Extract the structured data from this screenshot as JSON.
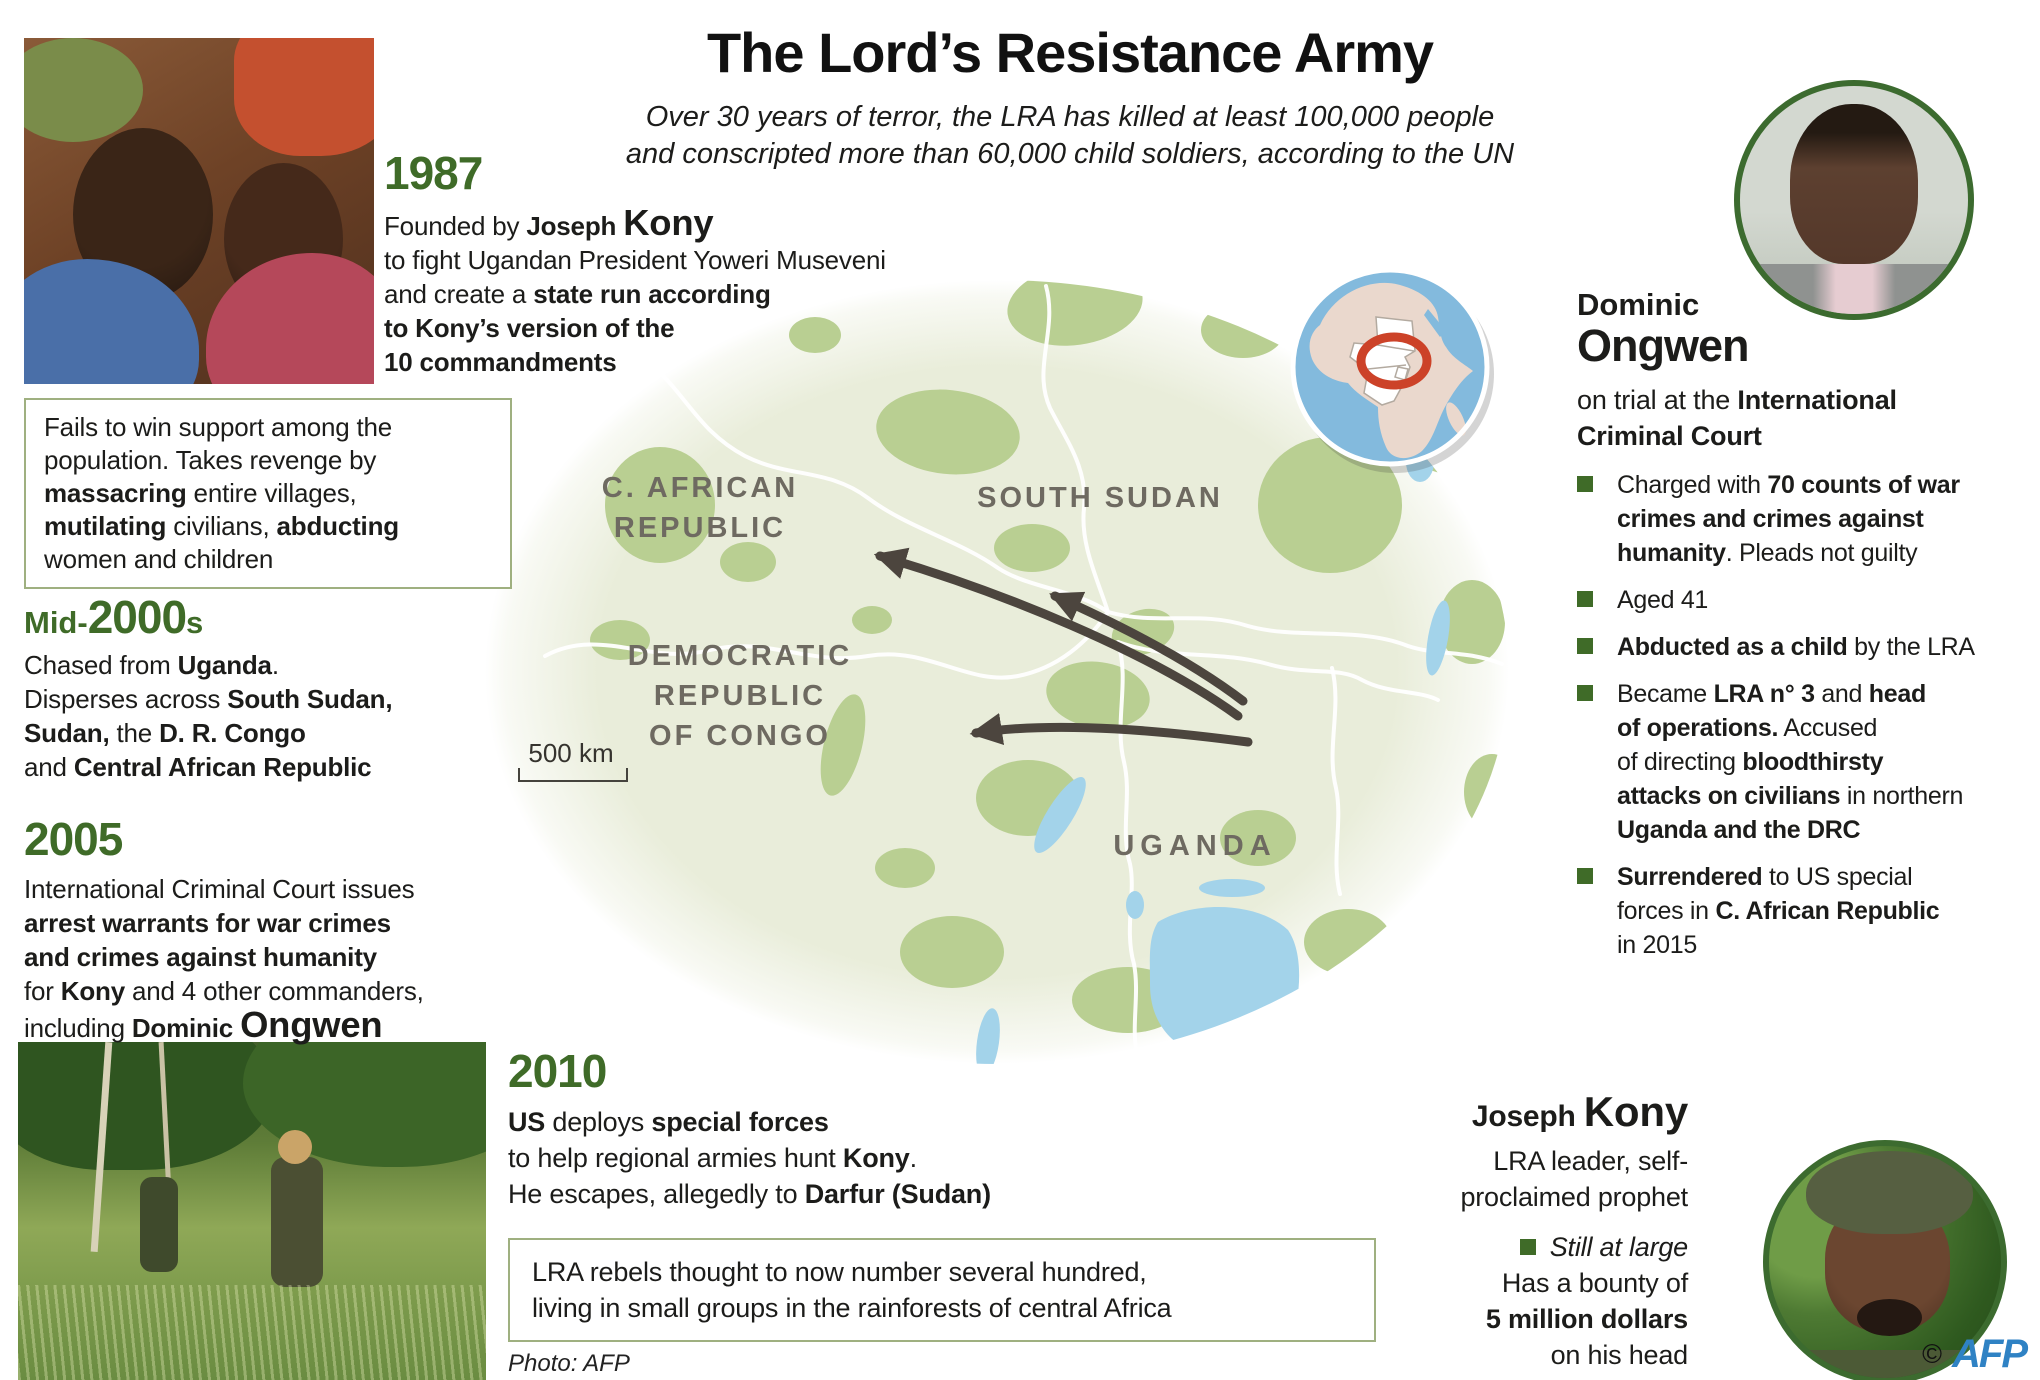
{
  "colors": {
    "accent_green": "#3f6b28",
    "map_land": "#e9edda",
    "map_vegetation": "#b9cf92",
    "map_label": "#6e6a61",
    "map_water": "#a3d3ea",
    "arrow": "#4c453e",
    "box_border": "#9fb080",
    "afp_blue": "#2f82c4",
    "locator_sea": "#83badd",
    "locator_land": "#ead8cd",
    "highlight_ring": "#cc4228"
  },
  "header": {
    "title": "The Lord’s Resistance Army",
    "subtitle_lines": [
      [
        {
          "t": "Over 30 years of terror, the LRA has killed at least 100,000 people"
        }
      ],
      [
        {
          "t": "and conscripted more than 60,000 child soldiers, according to the UN"
        }
      ]
    ]
  },
  "timeline": {
    "s1987": {
      "year": "1987",
      "lines": [
        [
          {
            "t": "Founded by "
          },
          {
            "t": "Joseph ",
            "c": "b"
          },
          {
            "t": "Kony",
            "c": "big"
          }
        ],
        [
          {
            "t": "to fight Ugandan President Yoweri Museveni"
          }
        ],
        [
          {
            "t": "and create a "
          },
          {
            "t": "state run according",
            "c": "b"
          }
        ],
        [
          {
            "t": "to Kony’s version of the",
            "c": "b"
          }
        ],
        [
          {
            "t": "10 commandments",
            "c": "b"
          }
        ]
      ]
    },
    "box_revenge": {
      "lines": [
        [
          {
            "t": "Fails to win support among the"
          }
        ],
        [
          {
            "t": "population. Takes revenge by"
          }
        ],
        [
          {
            "t": "massacring",
            "c": "b"
          },
          {
            "t": " entire villages,"
          }
        ],
        [
          {
            "t": "mutilating",
            "c": "b"
          },
          {
            "t": " civilians, "
          },
          {
            "t": "abducting",
            "c": "b"
          }
        ],
        [
          {
            "t": "women and children"
          }
        ]
      ]
    },
    "mid2000s": {
      "year_prefix": "Mid-",
      "year_big": "2000",
      "year_suffix": "s",
      "lines": [
        [
          {
            "t": "Chased from "
          },
          {
            "t": "Uganda",
            "c": "b"
          },
          {
            "t": "."
          }
        ],
        [
          {
            "t": "Disperses across "
          },
          {
            "t": "South Sudan,",
            "c": "b"
          }
        ],
        [
          {
            "t": "Sudan,",
            "c": "b"
          },
          {
            "t": " the "
          },
          {
            "t": "D. R. Congo",
            "c": "b"
          }
        ],
        [
          {
            "t": "and "
          },
          {
            "t": "Central African Republic",
            "c": "b"
          }
        ]
      ]
    },
    "s2005": {
      "year": "2005",
      "lines": [
        [
          {
            "t": "International Criminal Court issues"
          }
        ],
        [
          {
            "t": "arrest warrants for war crimes",
            "c": "b"
          }
        ],
        [
          {
            "t": "and crimes against humanity",
            "c": "b"
          }
        ],
        [
          {
            "t": "for "
          },
          {
            "t": "Kony",
            "c": "b"
          },
          {
            "t": " and 4 other commanders,"
          }
        ],
        [
          {
            "t": "including "
          },
          {
            "t": "Dominic ",
            "c": "b"
          },
          {
            "t": "Ongwen",
            "c": "big"
          }
        ]
      ]
    },
    "s2010": {
      "year": "2010",
      "lines": [
        [
          {
            "t": "US",
            "c": "b"
          },
          {
            "t": " deploys "
          },
          {
            "t": "special forces",
            "c": "b"
          }
        ],
        [
          {
            "t": "to help regional armies hunt "
          },
          {
            "t": "Kony",
            "c": "b"
          },
          {
            "t": "."
          }
        ],
        [
          {
            "t": "He escapes, allegedly to "
          },
          {
            "t": "Darfur (Sudan)",
            "c": "b"
          }
        ]
      ]
    },
    "box_rebels": {
      "lines": [
        [
          {
            "t": "LRA rebels thought to now number several hundred,"
          }
        ],
        [
          {
            "t": "living in small groups in the rainforests of central Africa"
          }
        ]
      ]
    },
    "photo_credit": "Photo: AFP"
  },
  "map": {
    "labels": {
      "car": [
        [
          {
            "t": "C. AFRICAN"
          }
        ],
        [
          {
            "t": "REPUBLIC"
          }
        ]
      ],
      "south_sudan": [
        [
          {
            "t": "SOUTH SUDAN"
          }
        ]
      ],
      "drc": [
        [
          {
            "t": "DEMOCRATIC"
          }
        ],
        [
          {
            "t": "REPUBLIC"
          }
        ],
        [
          {
            "t": "OF CONGO"
          }
        ]
      ],
      "uganda": [
        [
          {
            "t": "UGANDA"
          }
        ]
      ]
    },
    "scale_label": "500 km"
  },
  "ongwen": {
    "first_name": "Dominic",
    "last_name": "Ongwen",
    "role_lines": [
      [
        {
          "t": "on trial at the "
        },
        {
          "t": "International",
          "c": "b"
        }
      ],
      [
        {
          "t": "Criminal Court",
          "c": "b"
        }
      ]
    ],
    "bullets": [
      {
        "lines": [
          [
            {
              "t": "Charged with "
            },
            {
              "t": "70 counts of war",
              "c": "b"
            }
          ],
          [
            {
              "t": "crimes and crimes against",
              "c": "b"
            }
          ],
          [
            {
              "t": "humanity",
              "c": "b"
            },
            {
              "t": ". Pleads not guilty"
            }
          ]
        ]
      },
      {
        "lines": [
          [
            {
              "t": "Aged 41"
            }
          ]
        ]
      },
      {
        "lines": [
          [
            {
              "t": "Abducted as a child",
              "c": "b"
            },
            {
              "t": " by the LRA"
            }
          ]
        ]
      },
      {
        "lines": [
          [
            {
              "t": "Became "
            },
            {
              "t": "LRA n° 3",
              "c": "b"
            },
            {
              "t": " and "
            },
            {
              "t": "head",
              "c": "b"
            }
          ],
          [
            {
              "t": "of operations.",
              "c": "b"
            },
            {
              "t": " Accused"
            }
          ],
          [
            {
              "t": "of directing "
            },
            {
              "t": "bloodthirsty",
              "c": "b"
            }
          ],
          [
            {
              "t": "attacks on civilians",
              "c": "b"
            },
            {
              "t": " in northern"
            }
          ],
          [
            {
              "t": "Uganda and the DRC",
              "c": "b"
            }
          ]
        ]
      },
      {
        "lines": [
          [
            {
              "t": "Surrendered",
              "c": "b"
            },
            {
              "t": " to US special"
            }
          ],
          [
            {
              "t": "forces in "
            },
            {
              "t": "C. African Republic",
              "c": "b"
            }
          ],
          [
            {
              "t": "in 2015"
            }
          ]
        ]
      }
    ]
  },
  "kony": {
    "name_line": [
      [
        {
          "t": "Joseph ",
          "c": "b"
        },
        {
          "t": "Kony",
          "c": "big"
        }
      ]
    ],
    "role_lines": [
      [
        {
          "t": "LRA leader, self-"
        }
      ],
      [
        {
          "t": "proclaimed prophet"
        }
      ]
    ],
    "status_line": [
      [
        {
          "t": "Still at large",
          "c": "i"
        }
      ]
    ],
    "bounty_lines": [
      [
        {
          "t": "Has a bounty of"
        }
      ],
      [
        {
          "t": "5 million dollars",
          "c": "b"
        }
      ],
      [
        {
          "t": "on his head"
        }
      ]
    ]
  },
  "footer": {
    "copyright_symbol": "©",
    "brand": "AFP"
  }
}
